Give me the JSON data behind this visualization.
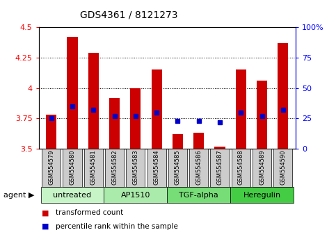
{
  "title": "GDS4361 / 8121273",
  "samples": [
    "GSM554579",
    "GSM554580",
    "GSM554581",
    "GSM554582",
    "GSM554583",
    "GSM554584",
    "GSM554585",
    "GSM554586",
    "GSM554587",
    "GSM554588",
    "GSM554589",
    "GSM554590"
  ],
  "transformed_counts": [
    3.78,
    4.42,
    4.29,
    3.92,
    4.0,
    4.15,
    3.62,
    3.63,
    3.52,
    4.15,
    4.06,
    4.37
  ],
  "percentile_ranks": [
    3.75,
    3.85,
    3.82,
    3.77,
    3.77,
    3.8,
    3.73,
    3.73,
    3.72,
    3.8,
    3.77,
    3.82
  ],
  "ylim": [
    3.5,
    4.5
  ],
  "yticks_left": [
    3.5,
    3.75,
    4.0,
    4.25,
    4.5
  ],
  "yticks_right": [
    0,
    25,
    50,
    75,
    100
  ],
  "ytick_labels_left": [
    "3.5",
    "3.75",
    "4",
    "4.25",
    "4.5"
  ],
  "ytick_labels_right": [
    "0",
    "25",
    "50",
    "75",
    "100%"
  ],
  "gridlines": [
    3.75,
    4.0,
    4.25
  ],
  "bar_color": "#cc0000",
  "dot_color": "#0000cc",
  "bar_bottom": 3.5,
  "groups": [
    {
      "label": "untreated",
      "start": 0,
      "end": 3
    },
    {
      "label": "AP1510",
      "start": 3,
      "end": 6
    },
    {
      "label": "TGF-alpha",
      "start": 6,
      "end": 9
    },
    {
      "label": "Heregulin",
      "start": 9,
      "end": 12
    }
  ],
  "group_colors": [
    "#c8f5c8",
    "#aaeaaa",
    "#77dd77",
    "#44cc44"
  ],
  "legend_items": [
    {
      "color": "#cc0000",
      "label": "transformed count"
    },
    {
      "color": "#0000cc",
      "label": "percentile rank within the sample"
    }
  ],
  "title_fontsize": 10,
  "tick_fontsize": 8,
  "sample_fontsize": 6,
  "group_fontsize": 8,
  "legend_fontsize": 7.5
}
